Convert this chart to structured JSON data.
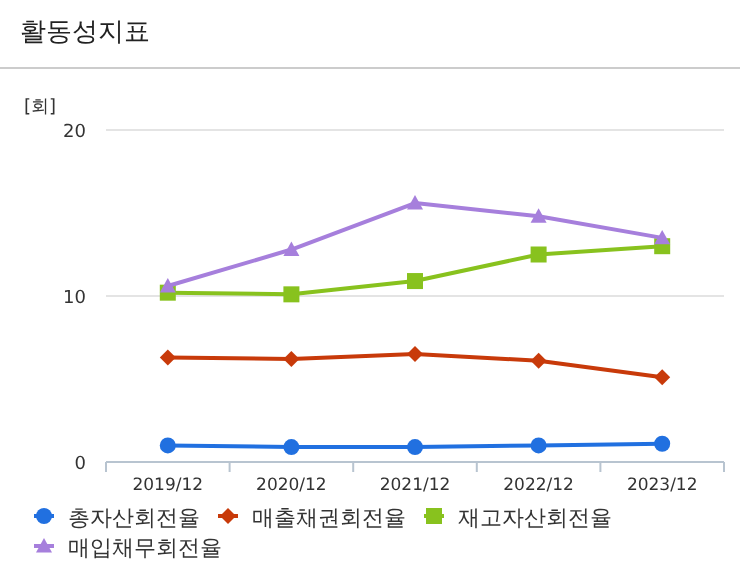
{
  "chart_data": {
    "type": "line",
    "title": "활동성지표",
    "ylabel": "[회]",
    "categories": [
      "2019/12",
      "2020/12",
      "2021/12",
      "2022/12",
      "2023/12"
    ],
    "series": [
      {
        "name": "총자산회전율",
        "color": "#2170e0",
        "marker": "circle",
        "values": [
          1.0,
          0.9,
          0.9,
          1.0,
          1.1
        ]
      },
      {
        "name": "매출채권회전율",
        "color": "#c83a0a",
        "marker": "diamond",
        "values": [
          6.3,
          6.2,
          6.5,
          6.1,
          5.1
        ]
      },
      {
        "name": "재고자산회전율",
        "color": "#88c21e",
        "marker": "square",
        "values": [
          10.2,
          10.1,
          10.9,
          12.5,
          13.0
        ]
      },
      {
        "name": "매입채무회전율",
        "color": "#a67fdc",
        "marker": "triangle",
        "values": [
          10.6,
          12.8,
          15.6,
          14.8,
          13.5
        ]
      }
    ],
    "ylim": [
      0,
      20
    ],
    "yticks": [
      0,
      10,
      20
    ],
    "grid": "y",
    "legend": "bottom"
  }
}
